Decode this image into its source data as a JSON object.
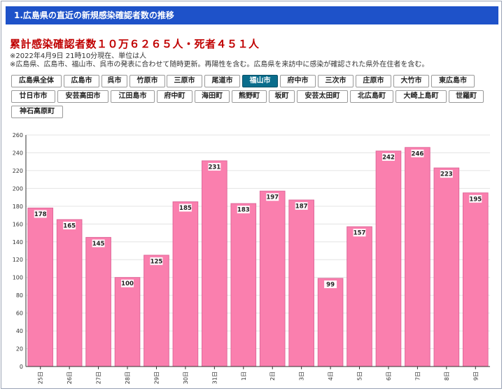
{
  "header": {
    "title": "1.広島県の直近の新規感染確認者数の推移"
  },
  "summary": {
    "total_line": "累計感染確認者数１０万６２６５人・死者４５１人",
    "note_date": "※2022年4月9日 21時10分現在、単位は人",
    "note_detail": "※広島県、広島市、福山市、呉市の発表に合わせて随時更新。再陽性を含む。広島県を来訪中に感染が確認された県外在住者を含む。"
  },
  "regions": [
    "広島県全体",
    "広島市",
    "呉市",
    "竹原市",
    "三原市",
    "尾道市",
    "福山市",
    "府中市",
    "三次市",
    "庄原市",
    "大竹市",
    "東広島市",
    "廿日市市",
    "安芸高田市",
    "江田島市",
    "府中町",
    "海田町",
    "熊野町",
    "坂町",
    "安芸太田町",
    "北広島町",
    "大崎上島町",
    "世羅町",
    "神石高原町"
  ],
  "active_region": "福山市",
  "colors": {
    "bar": "#fa7fae",
    "bar_stroke": "#e0689a",
    "header": "#1e52c9",
    "active": "#0a6d8c"
  },
  "chart_data": {
    "type": "bar",
    "categories": [
      "25日",
      "26日",
      "27日",
      "28日",
      "29日",
      "30日",
      "31日",
      "1日",
      "2日",
      "3日",
      "4日",
      "5日",
      "6日",
      "7日",
      "8日",
      "9日"
    ],
    "values": [
      178,
      165,
      145,
      100,
      125,
      185,
      231,
      183,
      197,
      187,
      99,
      157,
      242,
      246,
      223,
      195
    ],
    "ylim": [
      0,
      260
    ],
    "yticks": [
      0,
      20,
      40,
      60,
      80,
      100,
      120,
      140,
      160,
      180,
      200,
      220,
      240,
      260
    ],
    "grid": true,
    "legend": "none",
    "title": "",
    "xlabel": "",
    "ylabel": ""
  }
}
